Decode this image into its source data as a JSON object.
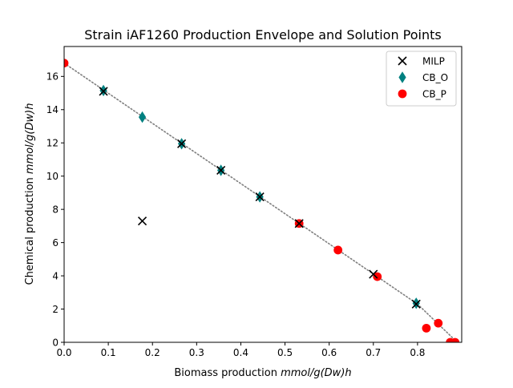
{
  "chart_data": {
    "type": "scatter",
    "title": "Strain iAF1260 Production Envelope and Solution Points",
    "xlabel_prefix": "Biomass production ",
    "xlabel_unit": "mmol/g(Dw)h",
    "ylabel_prefix": "Chemical production ",
    "ylabel_unit": "mmol/g(Dw)h",
    "xlim": [
      0.0,
      0.9
    ],
    "ylim": [
      0,
      17.8
    ],
    "x_ticks": [
      0.0,
      0.1,
      0.2,
      0.3,
      0.4,
      0.5,
      0.6,
      0.7,
      0.8
    ],
    "x_tick_labels": [
      "0.0",
      "0.1",
      "0.2",
      "0.3",
      "0.4",
      "0.5",
      "0.6",
      "0.7",
      "0.8"
    ],
    "y_ticks": [
      0,
      2,
      4,
      6,
      8,
      10,
      12,
      14,
      16
    ],
    "y_tick_labels": [
      "0",
      "2",
      "4",
      "6",
      "8",
      "10",
      "12",
      "14",
      "16"
    ],
    "grid": false,
    "legend_position": "top-right",
    "envelope": {
      "style": "dotted",
      "color": "#808080",
      "points": [
        [
          0.0,
          16.8
        ],
        [
          0.8,
          2.3
        ],
        [
          0.89,
          0.0
        ]
      ]
    },
    "series": [
      {
        "name": "MILP",
        "marker": "x",
        "color": "#000000",
        "points": [
          [
            0.089,
            15.1
          ],
          [
            0.177,
            7.3
          ],
          [
            0.266,
            11.95
          ],
          [
            0.355,
            10.35
          ],
          [
            0.443,
            8.75
          ],
          [
            0.532,
            7.15
          ],
          [
            0.7,
            4.1
          ],
          [
            0.797,
            2.3
          ]
        ]
      },
      {
        "name": "CB_O",
        "marker": "diamond",
        "color": "#008080",
        "points": [
          [
            0.089,
            15.15
          ],
          [
            0.177,
            13.55
          ],
          [
            0.266,
            11.95
          ],
          [
            0.355,
            10.35
          ],
          [
            0.443,
            8.75
          ],
          [
            0.797,
            2.35
          ]
        ]
      },
      {
        "name": "CB_P",
        "marker": "circle",
        "color": "#ff0000",
        "points": [
          [
            0.0,
            16.8
          ],
          [
            0.532,
            7.15
          ],
          [
            0.62,
            5.55
          ],
          [
            0.709,
            3.95
          ],
          [
            0.82,
            0.85
          ],
          [
            0.847,
            1.15
          ],
          [
            0.874,
            0.0
          ],
          [
            0.885,
            0.0
          ]
        ]
      }
    ]
  }
}
